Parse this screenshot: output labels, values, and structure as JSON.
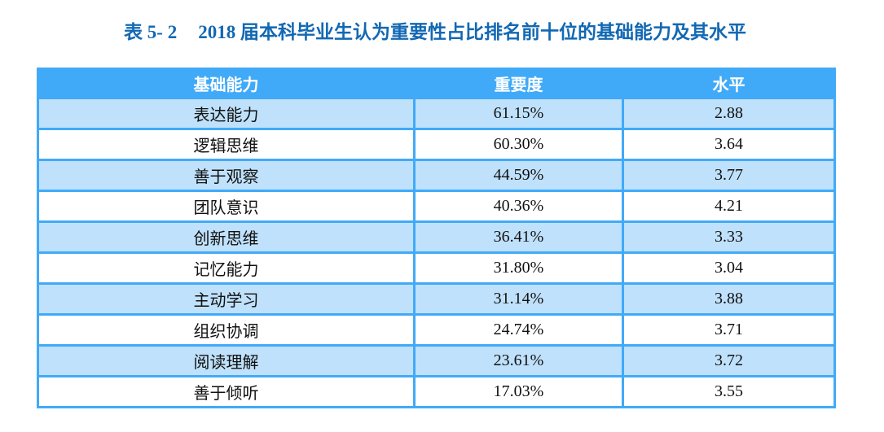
{
  "title": {
    "label": "表 5- 2",
    "text": "2018 届本科毕业生认为重要性占比排名前十位的基础能力及其水平"
  },
  "table": {
    "columns": [
      "基础能力",
      "重要度",
      "水平"
    ],
    "rows": [
      {
        "ability": "表达能力",
        "importance": "61.15%",
        "level": "2.88"
      },
      {
        "ability": "逻辑思维",
        "importance": "60.30%",
        "level": "3.64"
      },
      {
        "ability": "善于观察",
        "importance": "44.59%",
        "level": "3.77"
      },
      {
        "ability": "团队意识",
        "importance": "40.36%",
        "level": "4.21"
      },
      {
        "ability": "创新思维",
        "importance": "36.41%",
        "level": "3.33"
      },
      {
        "ability": "记忆能力",
        "importance": "31.80%",
        "level": "3.04"
      },
      {
        "ability": "主动学习",
        "importance": "31.14%",
        "level": "3.88"
      },
      {
        "ability": "组织协调",
        "importance": "24.74%",
        "level": "3.71"
      },
      {
        "ability": "阅读理解",
        "importance": "23.61%",
        "level": "3.72"
      },
      {
        "ability": "善于倾听",
        "importance": "17.03%",
        "level": "3.55"
      }
    ]
  },
  "colors": {
    "title_blue": "#1268b3",
    "header_blue": "#41aaf8",
    "row_light_blue": "#bfe1fb",
    "row_white": "#ffffff",
    "border_blue": "#41aaf8"
  }
}
